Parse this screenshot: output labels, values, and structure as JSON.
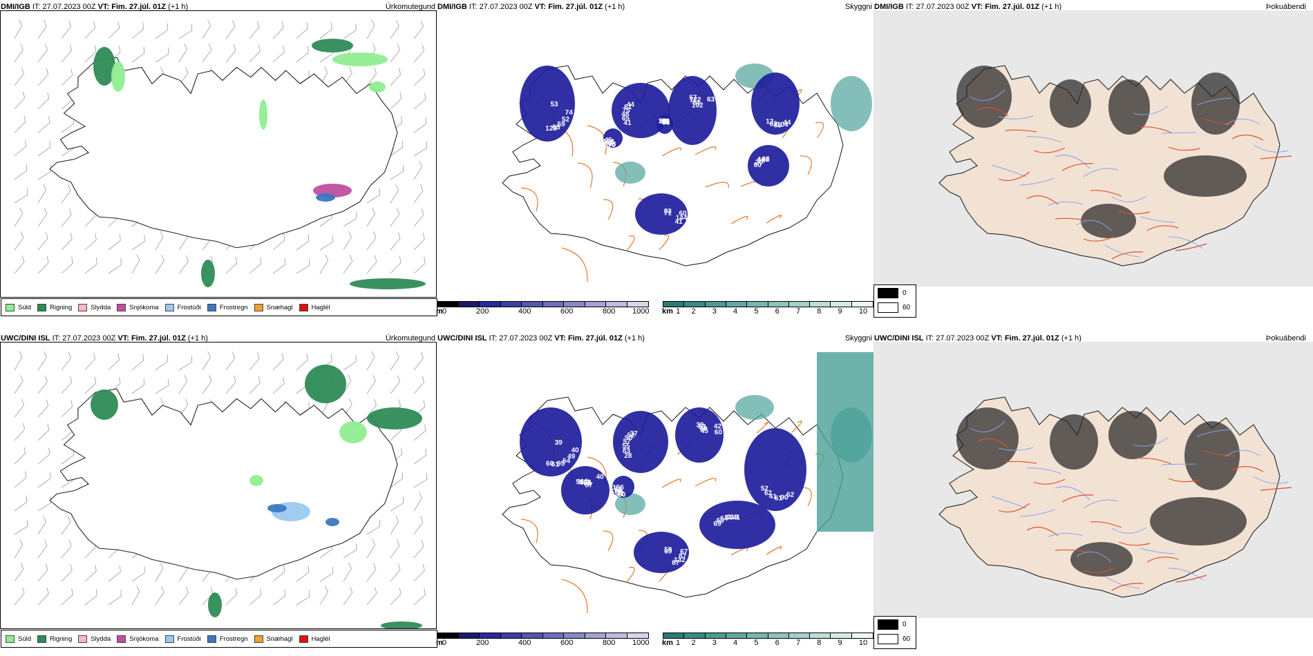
{
  "rows": [
    {
      "model": "DMI/IGB",
      "it_label": "IT:",
      "it": "27.07.2023 00Z",
      "vt_label": "VT:",
      "vt": "Fim. 27.júl. 01Z",
      "lead": "(+1 h)",
      "cloud_labels": [
        "53",
        "41",
        "57",
        "44",
        "60",
        "83",
        "70",
        "56",
        "74",
        "65",
        "122",
        "104",
        "20",
        "71",
        "108",
        "100",
        "52",
        "48",
        "51",
        "85",
        "65",
        "60",
        "67",
        "65",
        "59",
        "75",
        "102",
        "62",
        "142",
        "144",
        "122",
        "81",
        "55",
        "61",
        "63",
        "12",
        "66",
        "41",
        "45",
        "35",
        "120",
        "44"
      ]
    },
    {
      "model": "UWC/DINI ISL",
      "it_label": "IT:",
      "it": "27.07.2023 00Z",
      "vt_label": "VT:",
      "vt": "Fim. 27.júl. 01Z",
      "lead": "(+1 h)",
      "cloud_labels": [
        "39",
        "28",
        "39",
        "62",
        "69",
        "59",
        "60",
        "50",
        "40",
        "83",
        "83",
        "90",
        "60",
        "69",
        "32",
        "112",
        "49",
        "55",
        "60",
        "61",
        "64",
        "67",
        "88",
        "103",
        "64",
        "57",
        "45",
        "41",
        "34",
        "87",
        "86",
        "59",
        "95",
        "50",
        "42",
        "62",
        "119",
        "132",
        "72",
        "57",
        "61",
        "52",
        "60",
        "52",
        "41",
        "67",
        "156",
        "40",
        "60",
        "37"
      ]
    }
  ],
  "panel_names": {
    "precip": "Úrkomutegund",
    "cloud": "Skyggni",
    "fog": "Þokuábendi"
  },
  "precip_legend": [
    {
      "label": "Súld",
      "color": "#90ee90"
    },
    {
      "label": "Rigning",
      "color": "#2e8b57"
    },
    {
      "label": "Slydda",
      "color": "#ffb6c1"
    },
    {
      "label": "Snjókoma",
      "color": "#c04fa0"
    },
    {
      "label": "Frostúði",
      "color": "#9cc8f0"
    },
    {
      "label": "Frostregn",
      "color": "#3a78c2"
    },
    {
      "label": "Snæhagl",
      "color": "#f0a030"
    },
    {
      "label": "Haglél",
      "color": "#e01010"
    }
  ],
  "cloud_base_bar": {
    "unit": "m",
    "ticks": [
      "0",
      "200",
      "400",
      "600",
      "800",
      "1000"
    ],
    "colors": [
      "#000000",
      "#1a1a6e",
      "#2a2a9a",
      "#3d3da8",
      "#5555b0",
      "#6e6ebc",
      "#8888c8",
      "#a2a2d4",
      "#bcbce0",
      "#d6d6ec"
    ]
  },
  "visibility_bar": {
    "unit": "km",
    "ticks": [
      "1",
      "2",
      "3",
      "4",
      "5",
      "6",
      "7",
      "8",
      "9",
      "10"
    ],
    "colors": [
      "#2b7a78",
      "#3a8a85",
      "#4d9a93",
      "#60a8a0",
      "#76b6ae",
      "#8cc4bb",
      "#a3d1c9",
      "#bbded7",
      "#d3eae5",
      "#ecf6f4"
    ]
  },
  "fog_legend": [
    {
      "label": "0",
      "color": "#000000"
    },
    {
      "label": "60",
      "color": "#ffffff"
    }
  ],
  "colors": {
    "roads": "#e8782a",
    "rivers": "#8aa0f0",
    "land_fog": "#f2e2d4",
    "cloud_dark": "#1e1e9c"
  }
}
